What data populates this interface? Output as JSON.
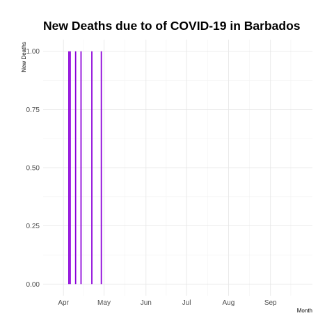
{
  "chart_data": {
    "type": "bar",
    "title": "New Deaths due to of COVID-19 in Barbados",
    "xlabel": "Month",
    "ylabel": "New Deaths",
    "x_type": "date",
    "xlim": [
      "2020-03-17",
      "2020-10-02"
    ],
    "ylim": [
      -0.05,
      1.05
    ],
    "x_ticks": [
      {
        "date": "2020-04-01",
        "label": "Apr"
      },
      {
        "date": "2020-05-01",
        "label": "May"
      },
      {
        "date": "2020-06-01",
        "label": "Jun"
      },
      {
        "date": "2020-07-01",
        "label": "Jul"
      },
      {
        "date": "2020-08-01",
        "label": "Aug"
      },
      {
        "date": "2020-09-01",
        "label": "Sep"
      }
    ],
    "y_ticks": [
      0.0,
      0.25,
      0.5,
      0.75,
      1.0
    ],
    "y_tick_labels": [
      "0.00",
      "0.25",
      "0.50",
      "0.75",
      "1.00"
    ],
    "grid": true,
    "bar_color": "#8b00d9",
    "points": [
      {
        "date": "2020-04-05",
        "value": 1
      },
      {
        "date": "2020-04-06",
        "value": 1
      },
      {
        "date": "2020-04-10",
        "value": 1
      },
      {
        "date": "2020-04-14",
        "value": 1
      },
      {
        "date": "2020-04-22",
        "value": 1
      },
      {
        "date": "2020-04-29",
        "value": 1
      }
    ]
  }
}
